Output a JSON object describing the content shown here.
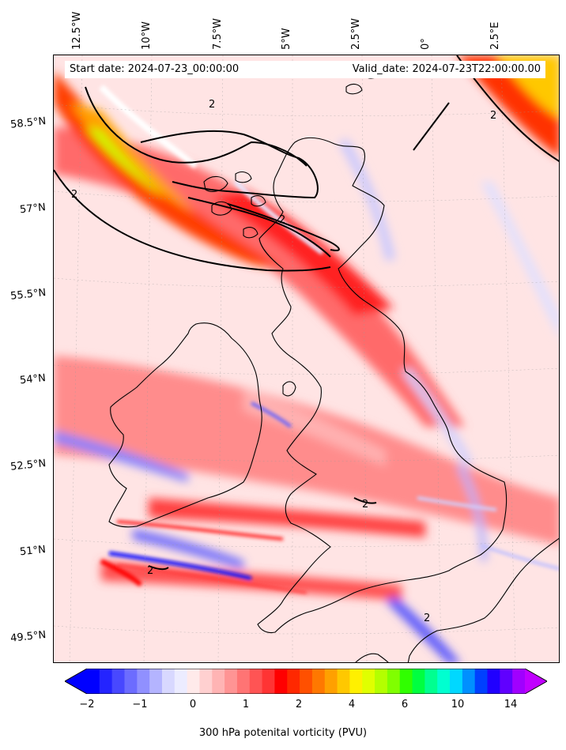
{
  "map": {
    "start_date": "Start date: 2024-07-23_00:00:00",
    "valid_date": "Valid_date: 2024-07-23T22:00:00.00",
    "lon_labels": [
      "12.5°W",
      "10°W",
      "7.5°W",
      "5°W",
      "2.5°W",
      "0°",
      "2.5°E"
    ],
    "lat_labels": [
      "58.5°N",
      "57°N",
      "55.5°N",
      "54°N",
      "52.5°N",
      "51°N",
      "49.5°N"
    ],
    "contour_label": "2"
  },
  "colorbar": {
    "label": "300 hPa potenital vorticity (PVU)",
    "tick_labels": [
      "−2",
      "−1",
      "0",
      "1",
      "2",
      "4",
      "6",
      "10",
      "14"
    ],
    "colors": [
      "#0000ff",
      "#2424ff",
      "#4848ff",
      "#6c6cff",
      "#9090ff",
      "#b4b4ff",
      "#d8d8ff",
      "#ececff",
      "#ffeaea",
      "#ffd0d0",
      "#ffb4b4",
      "#ff9494",
      "#ff7474",
      "#ff5454",
      "#ff3434",
      "#ff0000",
      "#ff2800",
      "#ff5000",
      "#ff7800",
      "#ffa000",
      "#ffc800",
      "#fff000",
      "#e0ff00",
      "#b4ff00",
      "#80ff00",
      "#30ff00",
      "#00ff40",
      "#00ff90",
      "#00ffd0",
      "#00d8ff",
      "#0090ff",
      "#0040ff",
      "#2000ff",
      "#6000ff",
      "#a000ff"
    ],
    "under_color": "#0000ff",
    "over_color": "#c000ff"
  }
}
